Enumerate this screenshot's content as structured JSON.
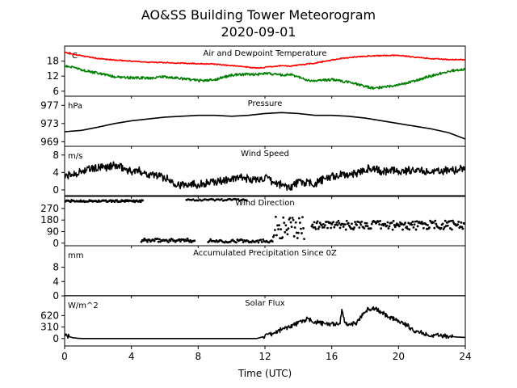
{
  "figure": {
    "title_line1": "AO&SS Building Tower Meteorogram",
    "title_line2": "2020-09-01"
  },
  "chart_data": [
    {
      "type": "line",
      "title": "Air and Dewpoint Temperature",
      "unit": "°C",
      "xlabel": "",
      "xlim": [
        0,
        24
      ],
      "ylim": [
        4,
        24
      ],
      "yticks": [
        6,
        12,
        18
      ],
      "series": [
        {
          "color": "#ff0000",
          "x": [
            0,
            0.5,
            1,
            1.5,
            2,
            3,
            4,
            5,
            6,
            7,
            8,
            9,
            10,
            11,
            11.5,
            12,
            12.5,
            13,
            13.5,
            14,
            15,
            15.5,
            16,
            16.5,
            17,
            18,
            19,
            20,
            21,
            22,
            23,
            24
          ],
          "y": [
            21.5,
            20.8,
            20.2,
            19.6,
            19.0,
            18.4,
            18.0,
            17.6,
            17.4,
            17.2,
            17.0,
            16.8,
            16.2,
            15.6,
            15.2,
            15.5,
            15.8,
            16.2,
            16.0,
            16.4,
            17.2,
            17.8,
            18.4,
            19.0,
            19.4,
            20.0,
            20.2,
            20.3,
            19.6,
            19.0,
            18.6,
            18.6
          ]
        },
        {
          "color": "#008000",
          "x": [
            0,
            0.5,
            1,
            1.5,
            2,
            2.5,
            3,
            4,
            5,
            6,
            7,
            8,
            9,
            10,
            11,
            11.5,
            12,
            12.5,
            13,
            13.5,
            14,
            14.5,
            15,
            16,
            17,
            17.5,
            18,
            18.5,
            19,
            20,
            21,
            22,
            23,
            24
          ],
          "y": [
            16.2,
            15.4,
            14.6,
            13.8,
            13.2,
            12.4,
            11.8,
            11.4,
            11.2,
            11.8,
            11.0,
            10.2,
            10.6,
            12.4,
            12.8,
            12.6,
            13.2,
            12.8,
            12.4,
            12.8,
            11.6,
            10.4,
            10.0,
            10.6,
            9.6,
            9.0,
            7.8,
            7.2,
            7.6,
            8.4,
            10.2,
            12.2,
            14.0,
            14.8
          ]
        }
      ]
    },
    {
      "type": "line",
      "title": "Pressure",
      "unit": "hPa",
      "xlim": [
        0,
        24
      ],
      "ylim": [
        968,
        979
      ],
      "yticks": [
        969,
        973,
        977
      ],
      "series": [
        {
          "color": "#000000",
          "x": [
            0,
            1,
            2,
            3,
            4,
            5,
            6,
            7,
            8,
            9,
            10,
            11,
            12,
            13,
            14,
            15,
            16,
            17,
            18,
            19,
            20,
            21,
            22,
            23,
            24
          ],
          "y": [
            971.2,
            971.5,
            972.2,
            973.0,
            973.6,
            974.0,
            974.4,
            974.6,
            974.8,
            974.8,
            974.6,
            974.8,
            975.2,
            975.4,
            975.2,
            974.8,
            974.8,
            974.6,
            974.2,
            973.6,
            973.0,
            972.4,
            971.8,
            971.0,
            969.6
          ]
        }
      ]
    },
    {
      "type": "line",
      "title": "Wind Speed",
      "unit": "m/s",
      "xlim": [
        0,
        24
      ],
      "ylim": [
        -1.5,
        10
      ],
      "yticks": [
        0,
        4,
        8
      ],
      "series": [
        {
          "color": "#000000",
          "x": [
            0,
            0.5,
            1,
            1.5,
            2,
            2.5,
            3,
            3.5,
            4,
            4.5,
            5,
            5.5,
            6,
            6.5,
            7,
            7.5,
            8,
            8.5,
            9,
            9.5,
            10,
            10.5,
            11,
            11.5,
            12,
            12.5,
            13,
            13.5,
            14,
            14.5,
            15,
            15.5,
            16,
            16.5,
            17,
            17.5,
            18,
            18.5,
            19,
            19.5,
            20,
            20.5,
            21,
            21.5,
            22,
            22.5,
            23,
            23.5,
            24
          ],
          "y": [
            3.0,
            3.6,
            4.2,
            4.8,
            5.0,
            5.2,
            5.6,
            5.0,
            4.2,
            4.4,
            3.6,
            3.4,
            2.8,
            1.8,
            1.0,
            1.6,
            1.2,
            1.6,
            1.8,
            2.2,
            2.4,
            2.8,
            2.6,
            2.2,
            2.8,
            1.6,
            1.2,
            0.6,
            1.8,
            1.6,
            1.4,
            2.4,
            3.0,
            3.4,
            3.6,
            3.8,
            4.8,
            5.0,
            4.0,
            4.6,
            4.2,
            4.4,
            4.8,
            4.2,
            4.6,
            4.0,
            4.8,
            4.4,
            5.4
          ]
        }
      ]
    },
    {
      "type": "scatter",
      "title": "Wind Direction",
      "unit": "",
      "xlim": [
        0,
        24
      ],
      "ylim": [
        -20,
        370
      ],
      "yticks": [
        0,
        90,
        180,
        270
      ],
      "series": [
        {
          "color": "#000000",
          "segments": [
            {
              "x0": 0.0,
              "x1": 4.7,
              "y0": 320,
              "y1": 335,
              "step": 0.06
            },
            {
              "x0": 4.6,
              "x1": 7.8,
              "y0": 8,
              "y1": 35,
              "step": 0.06
            },
            {
              "x0": 7.3,
              "x1": 10.9,
              "y0": 330,
              "y1": 345,
              "step": 0.1
            },
            {
              "x0": 8.6,
              "x1": 12.5,
              "y0": 5,
              "y1": 30,
              "step": 0.07
            },
            {
              "x0": 12.5,
              "x1": 14.4,
              "y0": 30,
              "y1": 210,
              "step": 0.05
            },
            {
              "x0": 14.8,
              "x1": 24.0,
              "y0": 105,
              "y1": 175,
              "step": 0.05
            }
          ]
        }
      ]
    },
    {
      "type": "line",
      "title": "Accumulated Precipitation Since 0Z",
      "unit": "mm",
      "xlim": [
        0,
        24
      ],
      "ylim": [
        0,
        14
      ],
      "yticks": [
        0,
        4,
        8
      ],
      "series": [
        {
          "color": "#000000",
          "x": [
            0,
            24
          ],
          "y": [
            0,
            0
          ]
        }
      ]
    },
    {
      "type": "line",
      "title": "Solar Flux",
      "unit": "W/m^2",
      "xlim": [
        0,
        24
      ],
      "ylim": [
        -200,
        1150
      ],
      "yticks": [
        0,
        310,
        620
      ],
      "series": [
        {
          "color": "#000000",
          "x": [
            0,
            0.2,
            0.5,
            1,
            2,
            4,
            6,
            8,
            10,
            11,
            11.5,
            12,
            12.5,
            13,
            13.5,
            14,
            14.5,
            15,
            15.5,
            16,
            16.5,
            16.6,
            16.8,
            17,
            17.5,
            18,
            18.5,
            19,
            19.5,
            20,
            20.5,
            21,
            21.5,
            22,
            22.5,
            23,
            23.5,
            24
          ],
          "y": [
            100,
            60,
            20,
            0,
            0,
            0,
            0,
            0,
            0,
            0,
            0,
            60,
            130,
            250,
            330,
            420,
            520,
            450,
            400,
            380,
            420,
            750,
            430,
            380,
            420,
            760,
            820,
            700,
            560,
            480,
            360,
            200,
            140,
            90,
            80,
            60,
            40,
            30
          ]
        }
      ]
    }
  ],
  "xaxis": {
    "label": "Time (UTC)",
    "ticks": [
      0,
      4,
      8,
      12,
      16,
      20,
      24
    ]
  }
}
